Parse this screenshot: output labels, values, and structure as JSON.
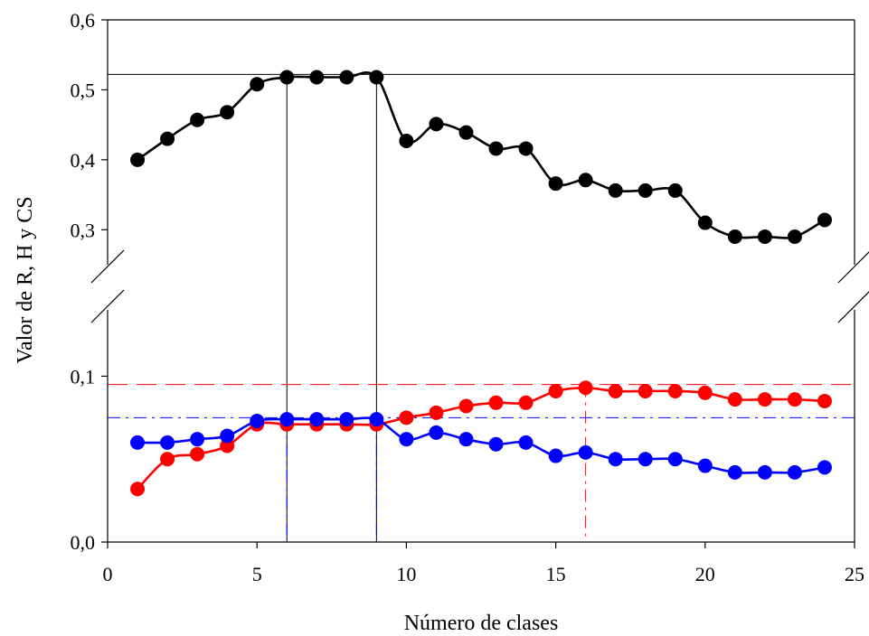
{
  "chart_data": {
    "type": "line",
    "xlabel": "Número de clases",
    "ylabel": "Valor de R, H y CS",
    "xlim": [
      0,
      25
    ],
    "x_ticks": [
      {
        "value": 0,
        "label": "0"
      },
      {
        "value": 5,
        "label": "5"
      },
      {
        "value": 10,
        "label": "10"
      },
      {
        "value": 15,
        "label": "15"
      },
      {
        "value": 20,
        "label": "20"
      },
      {
        "value": 25,
        "label": "25"
      }
    ],
    "broken_y_axis": true,
    "upper_segment": {
      "ylim": [
        0.25,
        0.6
      ],
      "y_ticks": [
        {
          "value": 0.3,
          "label": "0,3"
        },
        {
          "value": 0.4,
          "label": "0,4"
        },
        {
          "value": 0.5,
          "label": "0,5"
        },
        {
          "value": 0.6,
          "label": "0,6"
        }
      ]
    },
    "lower_segment": {
      "ylim": [
        0,
        0.14
      ],
      "y_ticks": [
        {
          "value": 0.0,
          "label": "0,0"
        },
        {
          "value": 0.1,
          "label": "0,1"
        }
      ]
    },
    "x": [
      1,
      2,
      3,
      4,
      5,
      6,
      7,
      8,
      9,
      10,
      11,
      12,
      13,
      14,
      15,
      16,
      17,
      18,
      19,
      20,
      21,
      22,
      23,
      24
    ],
    "series": [
      {
        "segment": "upper",
        "color": "#000000",
        "values": [
          0.4,
          0.43,
          0.457,
          0.468,
          0.508,
          0.518,
          0.518,
          0.518,
          0.518,
          0.427,
          0.451,
          0.439,
          0.416,
          0.416,
          0.366,
          0.371,
          0.356,
          0.356,
          0.356,
          0.31,
          0.29,
          0.29,
          0.29,
          0.314
        ]
      },
      {
        "segment": "lower",
        "color": "#ff0000",
        "values": [
          0.032,
          0.05,
          0.053,
          0.058,
          0.071,
          0.071,
          0.071,
          0.071,
          0.071,
          0.075,
          0.078,
          0.082,
          0.084,
          0.084,
          0.091,
          0.093,
          0.091,
          0.091,
          0.091,
          0.09,
          0.086,
          0.086,
          0.086,
          0.085
        ]
      },
      {
        "segment": "lower",
        "color": "#0000ff",
        "values": [
          0.06,
          0.06,
          0.062,
          0.064,
          0.073,
          0.074,
          0.074,
          0.074,
          0.074,
          0.062,
          0.066,
          0.062,
          0.059,
          0.06,
          0.052,
          0.054,
          0.05,
          0.05,
          0.05,
          0.046,
          0.042,
          0.042,
          0.042,
          0.045
        ]
      }
    ],
    "reference_lines": {
      "black_horizontal_y": 0.522,
      "black_vertical_x": [
        6,
        9
      ],
      "red_horizontal_y": 0.095,
      "red_vertical_x": [
        16
      ],
      "blue_horizontal_y": 0.075,
      "blue_vertical_x": [
        6,
        9
      ]
    },
    "grid": false,
    "legend": "none"
  }
}
